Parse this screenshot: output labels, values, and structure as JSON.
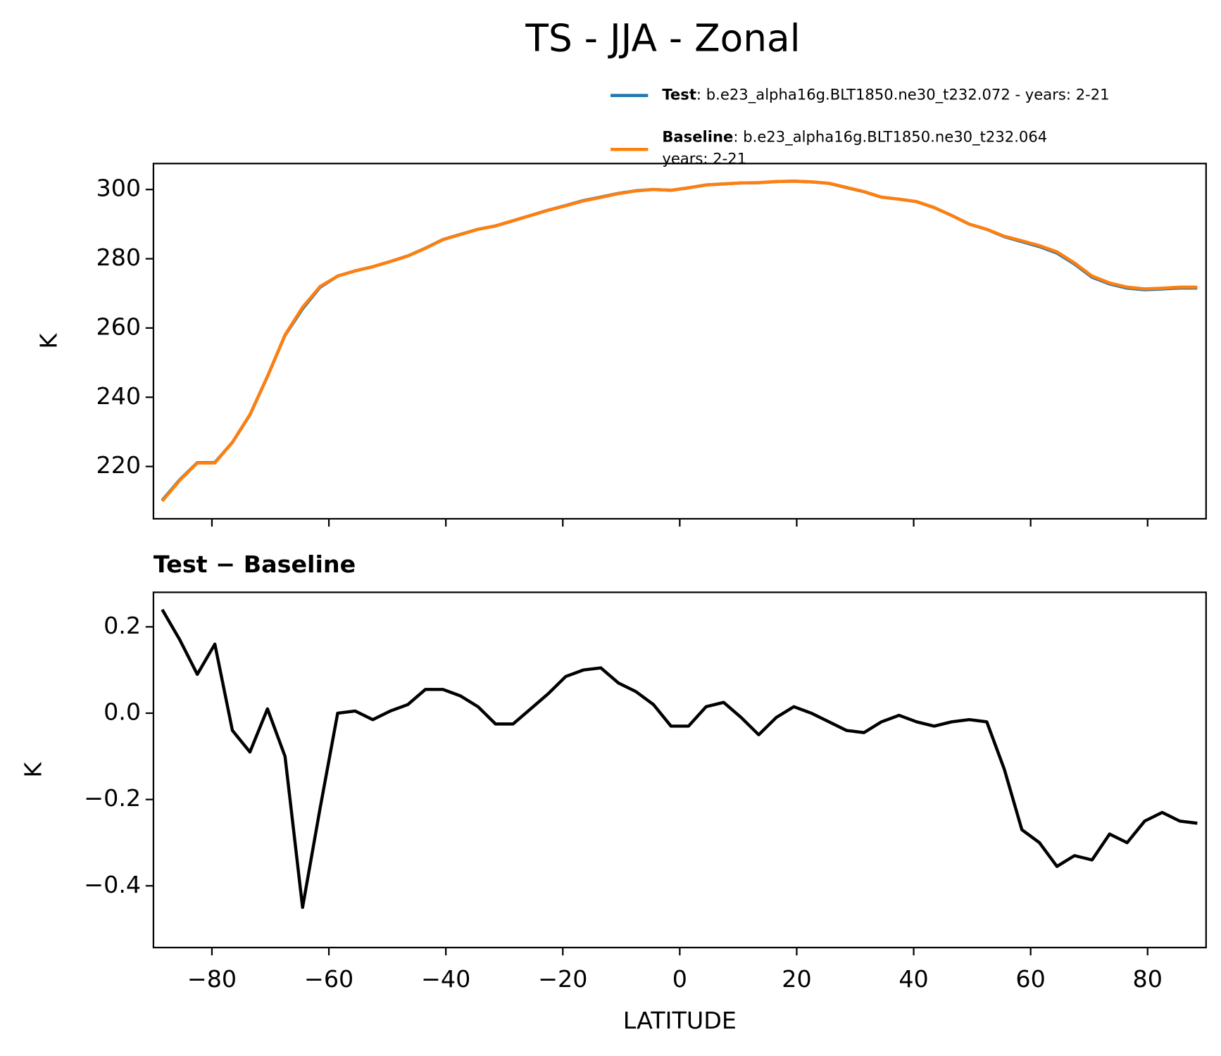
{
  "title": "TS - JJA - Zonal",
  "chart_data": [
    {
      "type": "line",
      "ylabel": "K",
      "x": [
        -88.5,
        -85.5,
        -82.5,
        -79.5,
        -76.5,
        -73.5,
        -70.5,
        -67.5,
        -64.5,
        -61.5,
        -58.5,
        -55.5,
        -52.5,
        -49.5,
        -46.5,
        -43.5,
        -40.5,
        -37.5,
        -34.5,
        -31.5,
        -28.5,
        -25.5,
        -22.5,
        -19.5,
        -16.5,
        -13.5,
        -10.5,
        -7.5,
        -4.5,
        -1.5,
        1.5,
        4.5,
        7.5,
        10.5,
        13.5,
        16.5,
        19.5,
        22.5,
        25.5,
        28.5,
        31.5,
        34.5,
        37.5,
        40.5,
        43.5,
        46.5,
        49.5,
        52.5,
        55.5,
        58.5,
        61.5,
        64.5,
        67.5,
        70.5,
        73.5,
        76.5,
        79.5,
        82.5,
        85.5,
        88.5
      ],
      "series": [
        {
          "name": "Test",
          "label": ": b.e23_alpha16g.BLT1850.ne30_t232.072 - years: 2-21",
          "color": "#1f77b4",
          "values": [
            210.24,
            216.17,
            221.09,
            221.16,
            226.96,
            234.91,
            246.01,
            257.9,
            265.55,
            271.78,
            275,
            276.505,
            277.685,
            279.205,
            280.82,
            283.055,
            285.555,
            287.04,
            288.515,
            289.475,
            290.975,
            292.51,
            294.045,
            295.385,
            296.8,
            297.805,
            298.87,
            299.65,
            300.02,
            299.77,
            300.47,
            301.315,
            301.625,
            301.89,
            301.95,
            302.29,
            302.415,
            302.2,
            301.78,
            300.56,
            299.355,
            297.78,
            297.195,
            296.48,
            294.77,
            292.48,
            289.985,
            288.48,
            286.37,
            284.93,
            283.5,
            281.645,
            278.47,
            274.66,
            272.72,
            271.5,
            271.05,
            271.27,
            271.55,
            271.545
          ]
        },
        {
          "name": "Baseline",
          "label_lines": [
            ": b.e23_alpha16g.BLT1850.ne30_t232.064",
            "years: 2-21"
          ],
          "color": "#ff7f0e",
          "values": [
            210,
            216,
            221,
            221,
            227,
            235,
            246,
            258,
            266,
            272,
            275,
            276.5,
            277.7,
            279.2,
            280.8,
            283,
            285.5,
            287,
            288.5,
            289.5,
            291,
            292.5,
            294,
            295.3,
            296.7,
            297.7,
            298.8,
            299.6,
            300,
            299.8,
            300.5,
            301.3,
            301.6,
            301.9,
            302,
            302.3,
            302.4,
            302.2,
            301.8,
            300.6,
            299.4,
            297.8,
            297.2,
            296.5,
            294.8,
            292.5,
            290,
            288.5,
            286.5,
            285.2,
            283.8,
            282,
            278.8,
            275,
            273,
            271.8,
            271.3,
            271.5,
            271.8,
            271.8
          ]
        }
      ],
      "xlim": [
        -90,
        90
      ],
      "xticks": [
        -80,
        -60,
        -40,
        -20,
        0,
        20,
        40,
        60,
        80
      ],
      "ylim": [
        204.9,
        307.5
      ],
      "yticks": [
        220,
        240,
        260,
        280,
        300
      ]
    },
    {
      "type": "line",
      "title": "Test − Baseline",
      "ylabel": "K",
      "xlabel": "LATITUDE",
      "x": [
        -88.5,
        -85.5,
        -82.5,
        -79.5,
        -76.5,
        -73.5,
        -70.5,
        -67.5,
        -64.5,
        -61.5,
        -58.5,
        -55.5,
        -52.5,
        -49.5,
        -46.5,
        -43.5,
        -40.5,
        -37.5,
        -34.5,
        -31.5,
        -28.5,
        -25.5,
        -22.5,
        -19.5,
        -16.5,
        -13.5,
        -10.5,
        -7.5,
        -4.5,
        -1.5,
        1.5,
        4.5,
        7.5,
        10.5,
        13.5,
        16.5,
        19.5,
        22.5,
        25.5,
        28.5,
        31.5,
        34.5,
        37.5,
        40.5,
        43.5,
        46.5,
        49.5,
        52.5,
        55.5,
        58.5,
        61.5,
        64.5,
        67.5,
        70.5,
        73.5,
        76.5,
        79.5,
        82.5,
        85.5,
        88.5
      ],
      "series": [
        {
          "color": "#000000",
          "values": [
            0.24,
            0.17,
            0.09,
            0.16,
            -0.04,
            -0.09,
            0.01,
            -0.1,
            -0.45,
            -0.22,
            0,
            0.005,
            -0.015,
            0.005,
            0.02,
            0.055,
            0.055,
            0.04,
            0.015,
            -0.025,
            -0.025,
            0.01,
            0.045,
            0.085,
            0.1,
            0.105,
            0.07,
            0.05,
            0.02,
            -0.03,
            -0.03,
            0.015,
            0.025,
            -0.01,
            -0.05,
            -0.01,
            0.015,
            0,
            -0.02,
            -0.04,
            -0.045,
            -0.02,
            -0.005,
            -0.02,
            -0.03,
            -0.02,
            -0.015,
            -0.02,
            -0.13,
            -0.27,
            -0.3,
            -0.355,
            -0.33,
            -0.34,
            -0.28,
            -0.3,
            -0.25,
            -0.23,
            -0.25,
            -0.255
          ]
        }
      ],
      "xlim": [
        -90,
        90
      ],
      "xticks": [
        {
          "value": -80,
          "label": "−80"
        },
        {
          "value": -60,
          "label": "−60"
        },
        {
          "value": -40,
          "label": "−40"
        },
        {
          "value": -20,
          "label": "−20"
        },
        0,
        20,
        40,
        60,
        80
      ],
      "ylim": [
        -0.543,
        0.28
      ],
      "yticks": [
        {
          "value": -0.4,
          "label": "−0.4"
        },
        {
          "value": -0.2,
          "label": "−0.2"
        },
        {
          "value": 0,
          "label": "0.0"
        },
        0.2
      ]
    }
  ]
}
